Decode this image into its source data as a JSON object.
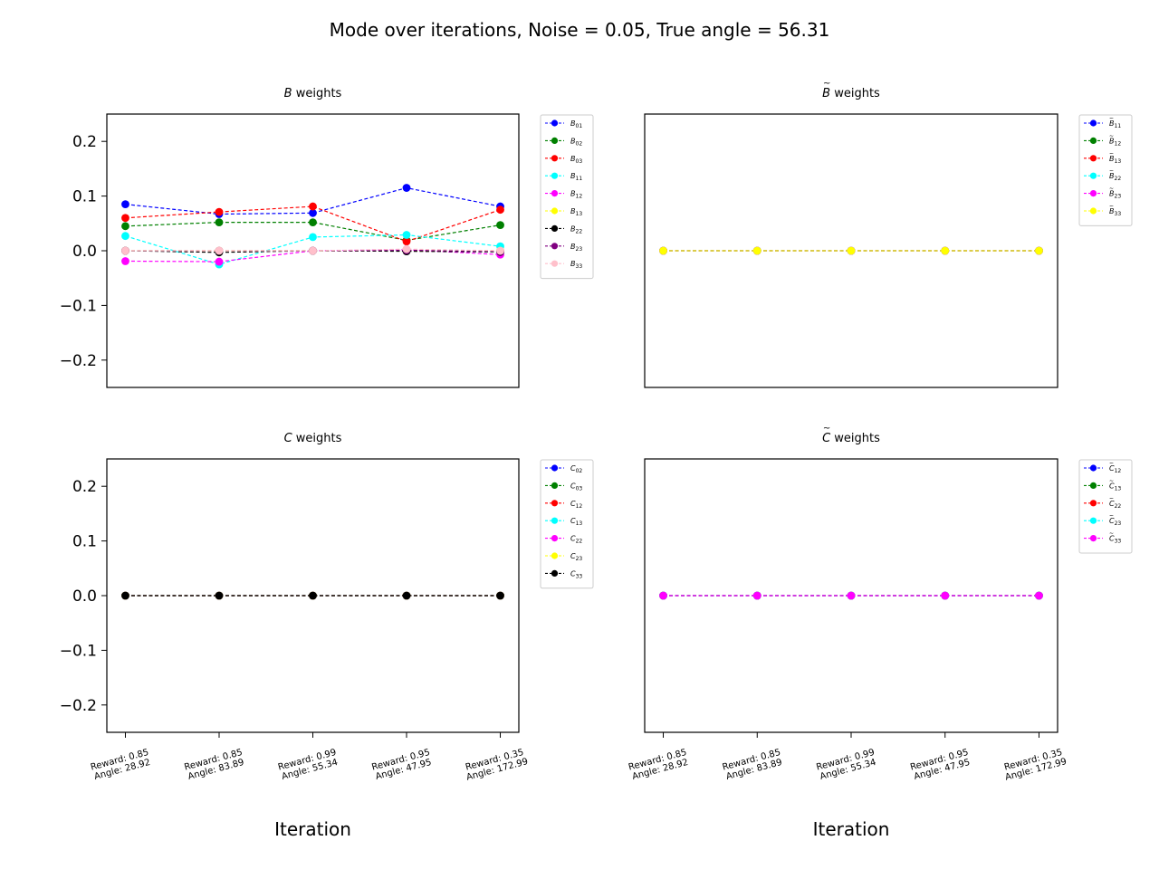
{
  "figure": {
    "suptitle": "Mode over iterations, Noise = 0.05, True angle = 56.31"
  },
  "chart_data": [
    {
      "type": "line",
      "title": "B weights",
      "title_symbol": "B",
      "title_rest": " weights",
      "title_accent": "",
      "xlabel": "",
      "ylim": [
        -0.25,
        0.25
      ],
      "yticks": [
        "0.2",
        "0.1",
        "0.0",
        "−0.1",
        "−0.2"
      ],
      "ytick_values": [
        0.2,
        0.1,
        0.0,
        -0.1,
        -0.2
      ],
      "show_yticks": true,
      "show_xticks": false,
      "categories": [
        [
          "Reward: 0.85",
          "Angle: 28.92"
        ],
        [
          "Reward: 0.85",
          "Angle: 83.89"
        ],
        [
          "Reward: 0.99",
          "Angle: 55.34"
        ],
        [
          "Reward: 0.95",
          "Angle: 47.95"
        ],
        [
          "Reward: 0.35",
          "Angle: 172.99"
        ]
      ],
      "legend_position": "outside-right",
      "series": [
        {
          "name": "B01",
          "base": "B",
          "sub": "01",
          "accent": "",
          "color": "#0000ff",
          "values": [
            0.085,
            0.067,
            0.069,
            0.115,
            0.081
          ]
        },
        {
          "name": "B02",
          "base": "B",
          "sub": "02",
          "accent": "",
          "color": "#008000",
          "values": [
            0.045,
            0.052,
            0.052,
            0.019,
            0.047
          ]
        },
        {
          "name": "B03",
          "base": "B",
          "sub": "03",
          "accent": "",
          "color": "#ff0000",
          "values": [
            0.06,
            0.071,
            0.081,
            0.017,
            0.075
          ]
        },
        {
          "name": "B11",
          "base": "B",
          "sub": "11",
          "accent": "",
          "color": "#00ffff",
          "values": [
            0.027,
            -0.025,
            0.025,
            0.029,
            0.008
          ]
        },
        {
          "name": "B12",
          "base": "B",
          "sub": "12",
          "accent": "",
          "color": "#ff00ff",
          "values": [
            -0.019,
            -0.02,
            0.0,
            0.002,
            -0.007
          ]
        },
        {
          "name": "B13",
          "base": "B",
          "sub": "13",
          "accent": "",
          "color": "#ffff00",
          "values": [
            0.0,
            0.0,
            0.0,
            0.0,
            0.0
          ]
        },
        {
          "name": "B22",
          "base": "B",
          "sub": "22",
          "accent": "",
          "color": "#000000",
          "values": [
            0.0,
            -0.003,
            0.0,
            -0.001,
            -0.002
          ]
        },
        {
          "name": "B23",
          "base": "B",
          "sub": "23",
          "accent": "",
          "color": "#800080",
          "values": [
            0.0,
            0.0,
            0.0,
            0.001,
            -0.001
          ]
        },
        {
          "name": "B33",
          "base": "B",
          "sub": "33",
          "accent": "",
          "color": "#ffc0cb",
          "values": [
            0.0,
            0.0,
            0.0,
            0.003,
            0.0
          ]
        }
      ]
    },
    {
      "type": "line",
      "title": "B̃ weights",
      "title_symbol": "B",
      "title_rest": " weights",
      "title_accent": "~",
      "xlabel": "",
      "ylim": [
        -0.25,
        0.25
      ],
      "yticks": [],
      "ytick_values": [],
      "show_yticks": false,
      "show_xticks": false,
      "categories": [
        [
          "Reward: 0.85",
          "Angle: 28.92"
        ],
        [
          "Reward: 0.85",
          "Angle: 83.89"
        ],
        [
          "Reward: 0.99",
          "Angle: 55.34"
        ],
        [
          "Reward: 0.95",
          "Angle: 47.95"
        ],
        [
          "Reward: 0.35",
          "Angle: 172.99"
        ]
      ],
      "legend_position": "outside-right",
      "series": [
        {
          "name": "B̃11",
          "base": "B",
          "sub": "11",
          "accent": "~",
          "color": "#0000ff",
          "values": [
            0,
            0,
            0,
            0,
            0
          ]
        },
        {
          "name": "B̃12",
          "base": "B",
          "sub": "12",
          "accent": "~",
          "color": "#008000",
          "values": [
            0,
            0,
            0,
            0,
            0
          ]
        },
        {
          "name": "B̃13",
          "base": "B",
          "sub": "13",
          "accent": "~",
          "color": "#ff0000",
          "values": [
            0,
            0,
            0,
            0,
            0
          ]
        },
        {
          "name": "B̃22",
          "base": "B",
          "sub": "22",
          "accent": "~",
          "color": "#00ffff",
          "values": [
            0,
            0,
            0,
            0,
            0
          ]
        },
        {
          "name": "B̃23",
          "base": "B",
          "sub": "23",
          "accent": "~",
          "color": "#ff00ff",
          "values": [
            0,
            0,
            0,
            0,
            0
          ]
        },
        {
          "name": "B̃33",
          "base": "B",
          "sub": "33",
          "accent": "~",
          "color": "#ffff00",
          "values": [
            0,
            0,
            0,
            0,
            0
          ]
        }
      ]
    },
    {
      "type": "line",
      "title": "C weights",
      "title_symbol": "C",
      "title_rest": " weights",
      "title_accent": "",
      "xlabel": "Iteration",
      "ylim": [
        -0.25,
        0.25
      ],
      "yticks": [
        "0.2",
        "0.1",
        "0.0",
        "−0.1",
        "−0.2"
      ],
      "ytick_values": [
        0.2,
        0.1,
        0.0,
        -0.1,
        -0.2
      ],
      "show_yticks": true,
      "show_xticks": true,
      "categories": [
        [
          "Reward: 0.85",
          "Angle: 28.92"
        ],
        [
          "Reward: 0.85",
          "Angle: 83.89"
        ],
        [
          "Reward: 0.99",
          "Angle: 55.34"
        ],
        [
          "Reward: 0.95",
          "Angle: 47.95"
        ],
        [
          "Reward: 0.35",
          "Angle: 172.99"
        ]
      ],
      "legend_position": "outside-right",
      "series": [
        {
          "name": "C02",
          "base": "C",
          "sub": "02",
          "accent": "",
          "color": "#0000ff",
          "values": [
            0,
            0,
            0,
            0,
            0
          ]
        },
        {
          "name": "C03",
          "base": "C",
          "sub": "03",
          "accent": "",
          "color": "#008000",
          "values": [
            0,
            0,
            0,
            0,
            0
          ]
        },
        {
          "name": "C12",
          "base": "C",
          "sub": "12",
          "accent": "",
          "color": "#ff0000",
          "values": [
            0,
            0,
            0,
            0,
            0
          ]
        },
        {
          "name": "C13",
          "base": "C",
          "sub": "13",
          "accent": "",
          "color": "#00ffff",
          "values": [
            0,
            0,
            0,
            0,
            0
          ]
        },
        {
          "name": "C22",
          "base": "C",
          "sub": "22",
          "accent": "",
          "color": "#ff00ff",
          "values": [
            0,
            0,
            0,
            0,
            0
          ]
        },
        {
          "name": "C23",
          "base": "C",
          "sub": "23",
          "accent": "",
          "color": "#ffff00",
          "values": [
            0,
            0,
            0,
            0,
            0
          ]
        },
        {
          "name": "C33",
          "base": "C",
          "sub": "33",
          "accent": "",
          "color": "#000000",
          "values": [
            0,
            0,
            0,
            0,
            0
          ]
        }
      ]
    },
    {
      "type": "line",
      "title": "C̃ weights",
      "title_symbol": "C",
      "title_rest": " weights",
      "title_accent": "~",
      "xlabel": "Iteration",
      "ylim": [
        -0.25,
        0.25
      ],
      "yticks": [],
      "ytick_values": [],
      "show_yticks": false,
      "show_xticks": true,
      "categories": [
        [
          "Reward: 0.85",
          "Angle: 28.92"
        ],
        [
          "Reward: 0.85",
          "Angle: 83.89"
        ],
        [
          "Reward: 0.99",
          "Angle: 55.34"
        ],
        [
          "Reward: 0.95",
          "Angle: 47.95"
        ],
        [
          "Reward: 0.35",
          "Angle: 172.99"
        ]
      ],
      "legend_position": "outside-right",
      "series": [
        {
          "name": "C̃12",
          "base": "C",
          "sub": "12",
          "accent": "~",
          "color": "#0000ff",
          "values": [
            0,
            0,
            0,
            0,
            0
          ]
        },
        {
          "name": "C̃13",
          "base": "C",
          "sub": "13",
          "accent": "~",
          "color": "#008000",
          "values": [
            0,
            0,
            0,
            0,
            0
          ]
        },
        {
          "name": "C̃22",
          "base": "C",
          "sub": "22",
          "accent": "~",
          "color": "#ff0000",
          "values": [
            0,
            0,
            0,
            0,
            0
          ]
        },
        {
          "name": "C̃23",
          "base": "C",
          "sub": "23",
          "accent": "~",
          "color": "#00ffff",
          "values": [
            0,
            0,
            0,
            0,
            0
          ]
        },
        {
          "name": "C̃33",
          "base": "C",
          "sub": "33",
          "accent": "~",
          "color": "#ff00ff",
          "values": [
            0,
            0,
            0,
            0,
            0
          ]
        }
      ]
    }
  ]
}
